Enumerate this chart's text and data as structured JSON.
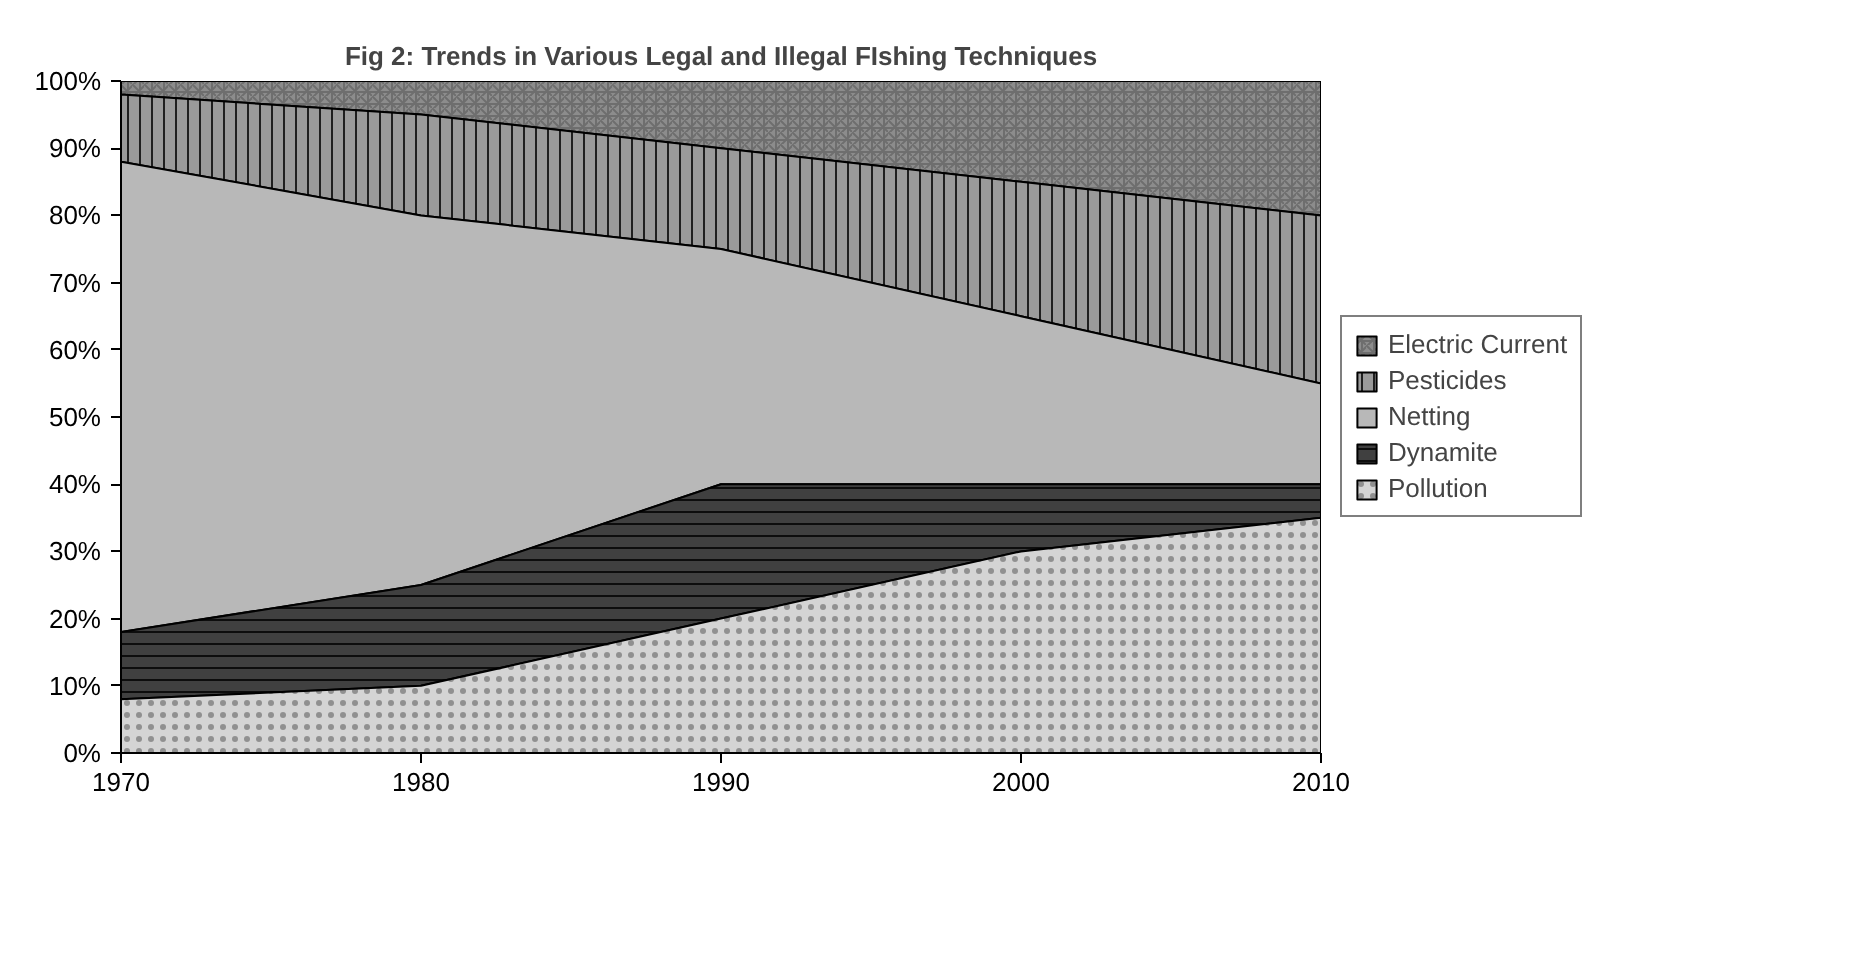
{
  "chart_data": {
    "type": "area",
    "stacked": true,
    "title": "Fig 2: Trends in Various Legal and Illegal FIshing Techniques",
    "x": [
      1970,
      1980,
      1990,
      2000,
      2010
    ],
    "series": [
      {
        "name": "Pollution",
        "color": "#d4d4d4",
        "values": [
          8,
          10,
          20,
          30,
          35
        ]
      },
      {
        "name": "Dynamite",
        "color": "#404040",
        "values": [
          10,
          15,
          20,
          10,
          5
        ]
      },
      {
        "name": "Netting",
        "color": "#b8b8b8",
        "values": [
          70,
          55,
          35,
          25,
          15
        ]
      },
      {
        "name": "Pesticides",
        "color": "#9a9a9a",
        "values": [
          10,
          15,
          15,
          20,
          25
        ]
      },
      {
        "name": "Electric Current",
        "color": "#8c8c8c",
        "values": [
          2,
          5,
          10,
          15,
          20
        ]
      }
    ],
    "xlim": [
      1970,
      2010
    ],
    "xticks": [
      1970,
      1980,
      1990,
      2000,
      2010
    ],
    "ylim": [
      0,
      100
    ],
    "yticks": [
      {
        "value": 0,
        "label": "0%"
      },
      {
        "value": 10,
        "label": "10%"
      },
      {
        "value": 20,
        "label": "20%"
      },
      {
        "value": 30,
        "label": "30%"
      },
      {
        "value": 40,
        "label": "40%"
      },
      {
        "value": 50,
        "label": "50%"
      },
      {
        "value": 60,
        "label": "60%"
      },
      {
        "value": 70,
        "label": "70%"
      },
      {
        "value": 80,
        "label": "80%"
      },
      {
        "value": 90,
        "label": "90%"
      },
      {
        "value": 100,
        "label": "100%"
      }
    ],
    "legend": "right"
  }
}
